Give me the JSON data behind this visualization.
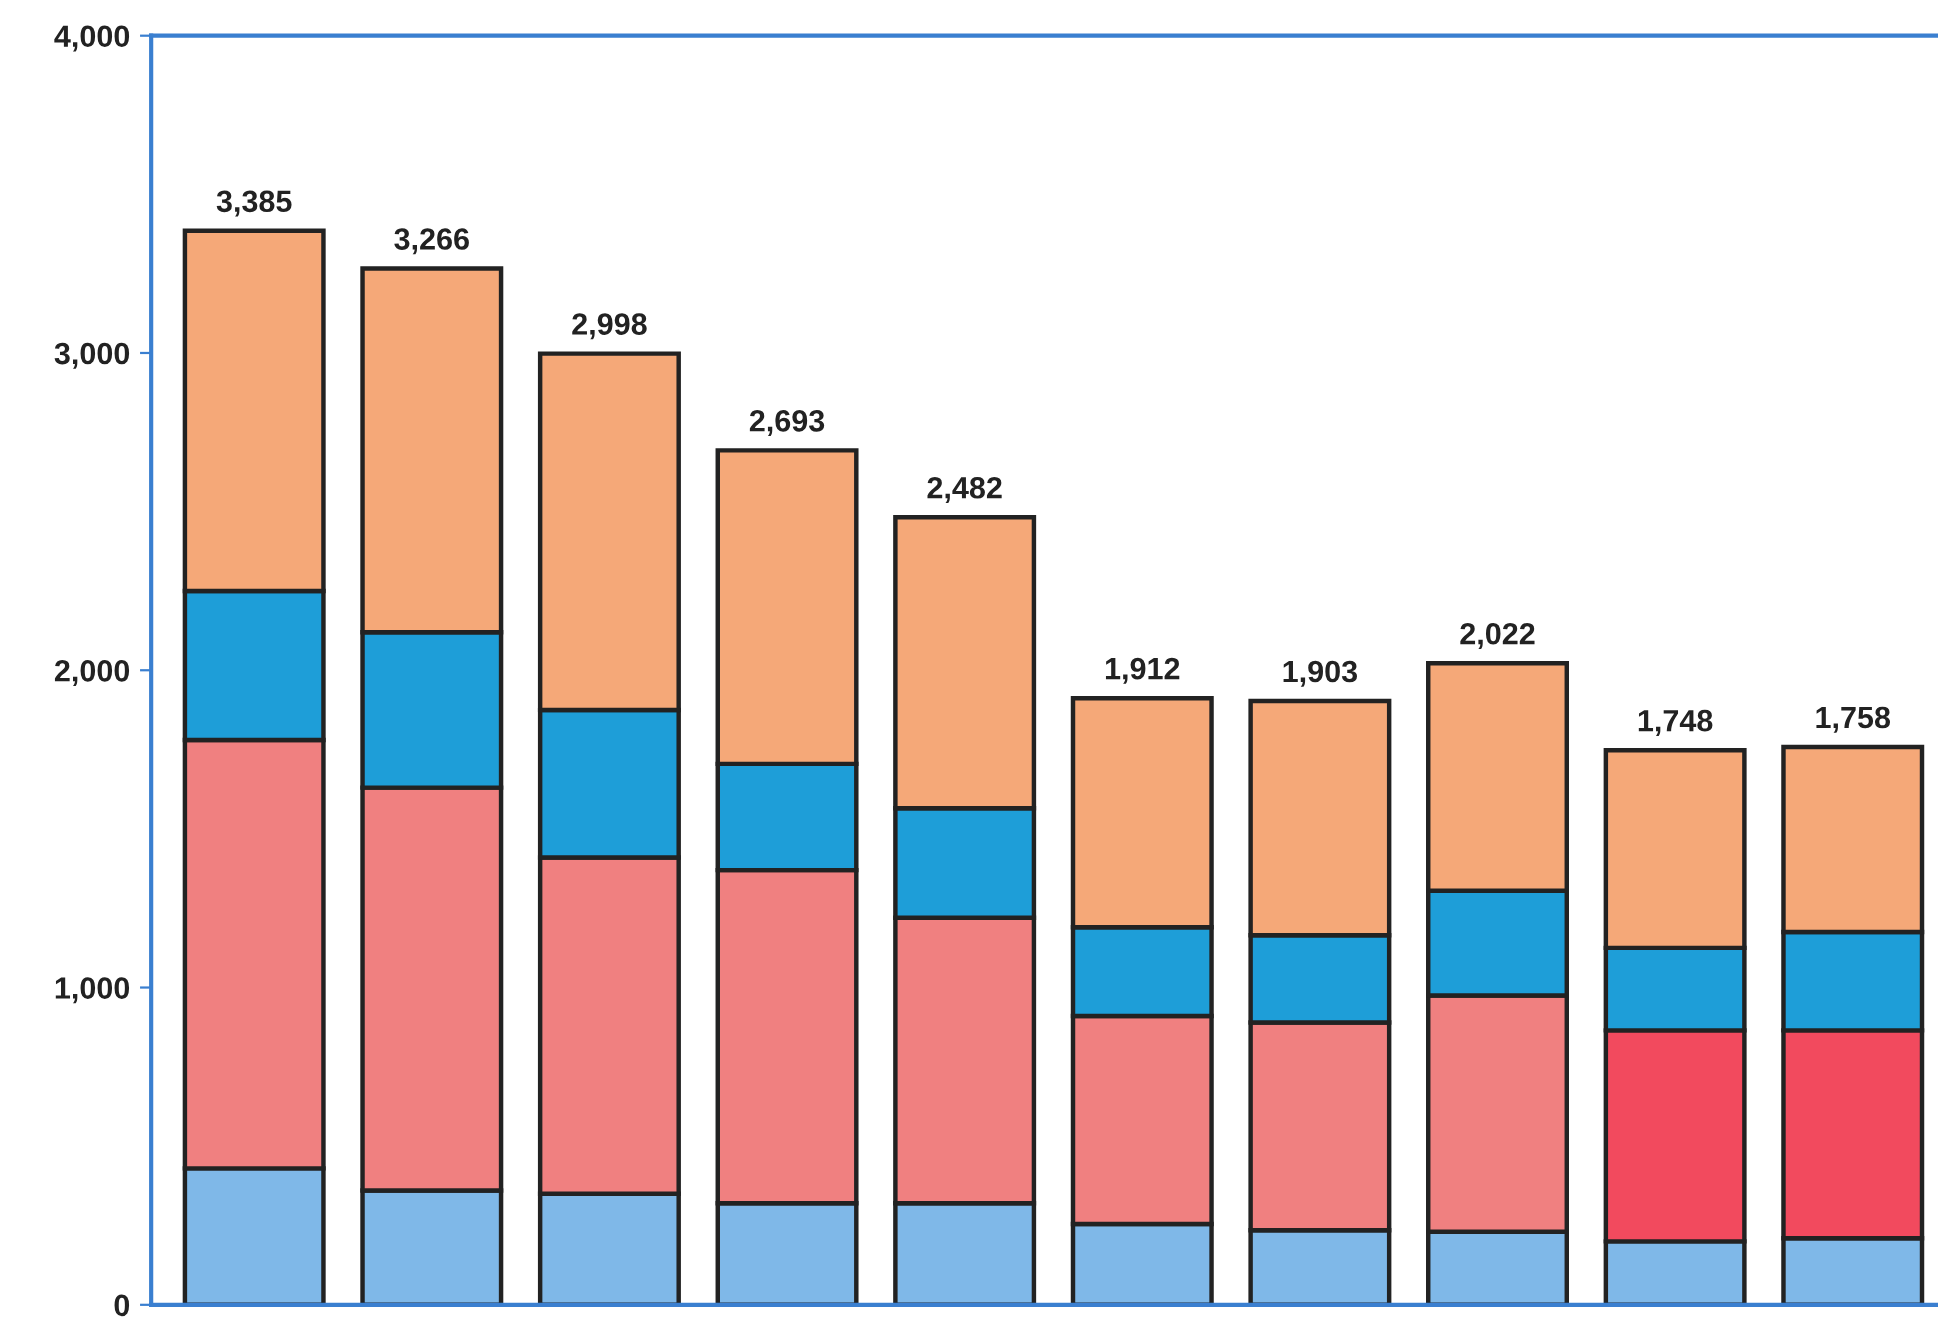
{
  "chart_data": {
    "type": "bar",
    "stacked": true,
    "categories": [
      null,
      null,
      null,
      null,
      null,
      null,
      null,
      null,
      null,
      null
    ],
    "series": [
      {
        "color": "#7fb8e8",
        "values": [
          430,
          360,
          350,
          320,
          320,
          255,
          235,
          230,
          200,
          210
        ]
      },
      {
        "color": "#f08080",
        "colors": [
          "#f08080",
          "#f08080",
          "#f08080",
          "#f08080",
          "#f08080",
          "#f08080",
          "#f08080",
          "#f08080",
          "#f24a5e",
          "#f24a5e"
        ],
        "values": [
          1350,
          1270,
          1060,
          1050,
          900,
          655,
          655,
          745,
          665,
          655
        ]
      },
      {
        "color": "#1e9ed8",
        "values": [
          470,
          490,
          465,
          335,
          345,
          280,
          275,
          330,
          260,
          310
        ]
      },
      {
        "color": "#f5a878",
        "values": [
          1135,
          1146,
          1123,
          988,
          917,
          722,
          738,
          717,
          623,
          583
        ]
      }
    ],
    "totals": [
      "3,385",
      "3,266",
      "2,998",
      "2,693",
      "2,482",
      "1,912",
      "1,903",
      "2,022",
      "1,748",
      "1,758"
    ],
    "ylim": [
      0,
      4000
    ],
    "yticks": [
      {
        "value": 0,
        "label": "0"
      },
      {
        "value": 1000,
        "label": "1,000"
      },
      {
        "value": 2000,
        "label": "2,000"
      },
      {
        "value": 3000,
        "label": "3,000"
      },
      {
        "value": 4000,
        "label": "4,000"
      }
    ],
    "grid": false,
    "legend": false
  }
}
